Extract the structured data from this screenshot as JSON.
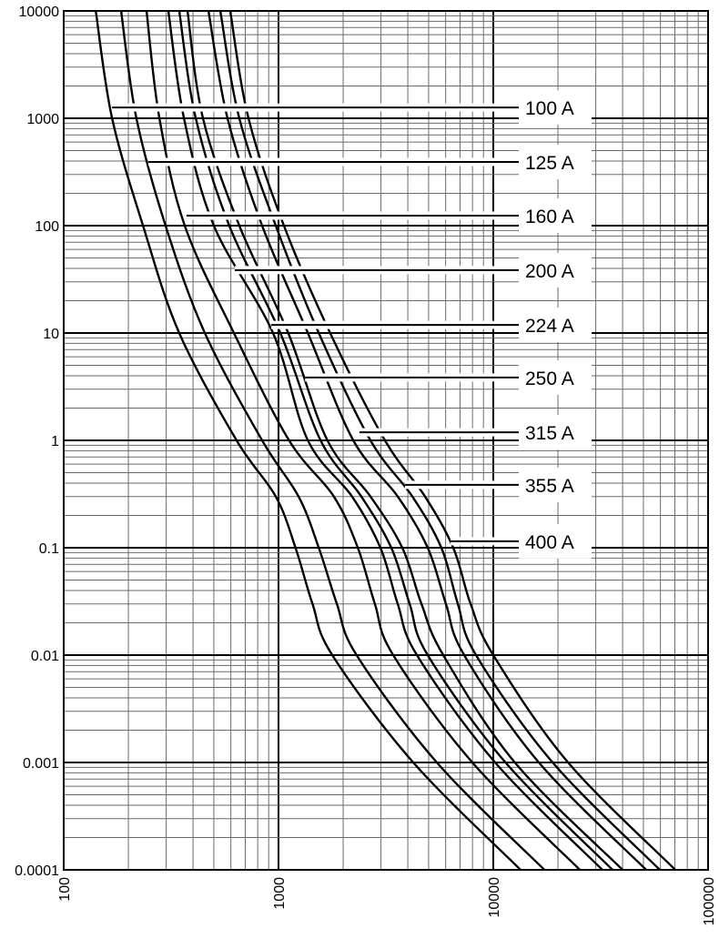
{
  "chart_data": {
    "type": "line",
    "title": "",
    "xlabel": "",
    "ylabel": "",
    "x_scale": "log",
    "y_scale": "log",
    "xlim": [
      100,
      100000
    ],
    "ylim": [
      0.0001,
      10000
    ],
    "grid": true,
    "x_ticks": [
      "100",
      "1000",
      "10000",
      "100000"
    ],
    "y_ticks": [
      "0.0001",
      "0.001",
      "0.01",
      "0.1",
      "1",
      "10",
      "100",
      "1000",
      "10000"
    ],
    "t_points": [
      10000,
      1000,
      100,
      10,
      1,
      0.3,
      0.1,
      0.03,
      0.01,
      0.001,
      0.0001
    ],
    "series": [
      {
        "name": "100 A",
        "label_t": 1260,
        "leader_from_x": 168,
        "x": [
          141,
          168,
          234,
          345,
          638,
          971,
          1200,
          1440,
          1780,
          4240,
          13400
        ]
      },
      {
        "name": "125 A",
        "label_t": 392,
        "leader_from_x": 248,
        "x": [
          185,
          218,
          298,
          454,
          839,
          1240,
          1540,
          1870,
          2310,
          5460,
          17300
        ]
      },
      {
        "name": "160 A",
        "label_t": 124,
        "leader_from_x": 373,
        "x": [
          243,
          279,
          366,
          620,
          1120,
          1810,
          2340,
          2810,
          3420,
          7990,
          25300
        ]
      },
      {
        "name": "200 A",
        "label_t": 38.5,
        "leader_from_x": 626,
        "x": [
          307,
          363,
          500,
          943,
          1370,
          2200,
          2980,
          3590,
          4410,
          10200,
          32200
        ]
      },
      {
        "name": "224 A",
        "label_t": 11.9,
        "leader_from_x": 925,
        "x": [
          345,
          412,
          590,
          1020,
          1570,
          2430,
          3350,
          4080,
          4950,
          11400,
          35900
        ]
      },
      {
        "name": "250 A",
        "label_t": 3.85,
        "leader_from_x": 1330,
        "x": [
          377,
          445,
          657,
          1110,
          1690,
          2680,
          3770,
          4630,
          5850,
          12600,
          40000
        ]
      },
      {
        "name": "315 A",
        "label_t": 1.19,
        "leader_from_x": 2380,
        "x": [
          472,
          579,
          839,
          1370,
          2230,
          3590,
          4950,
          6020,
          7320,
          16300,
          51500
        ]
      },
      {
        "name": "355 A",
        "label_t": 0.385,
        "leader_from_x": 3880,
        "x": [
          536,
          657,
          971,
          1540,
          2680,
          4200,
          5730,
          6840,
          8310,
          18900,
          59600
        ]
      },
      {
        "name": "400 A",
        "label_t": 0.115,
        "leader_from_x": 6320,
        "x": [
          596,
          725,
          1060,
          1740,
          3130,
          4810,
          6510,
          7840,
          10000,
          22300,
          70400
        ]
      }
    ]
  }
}
